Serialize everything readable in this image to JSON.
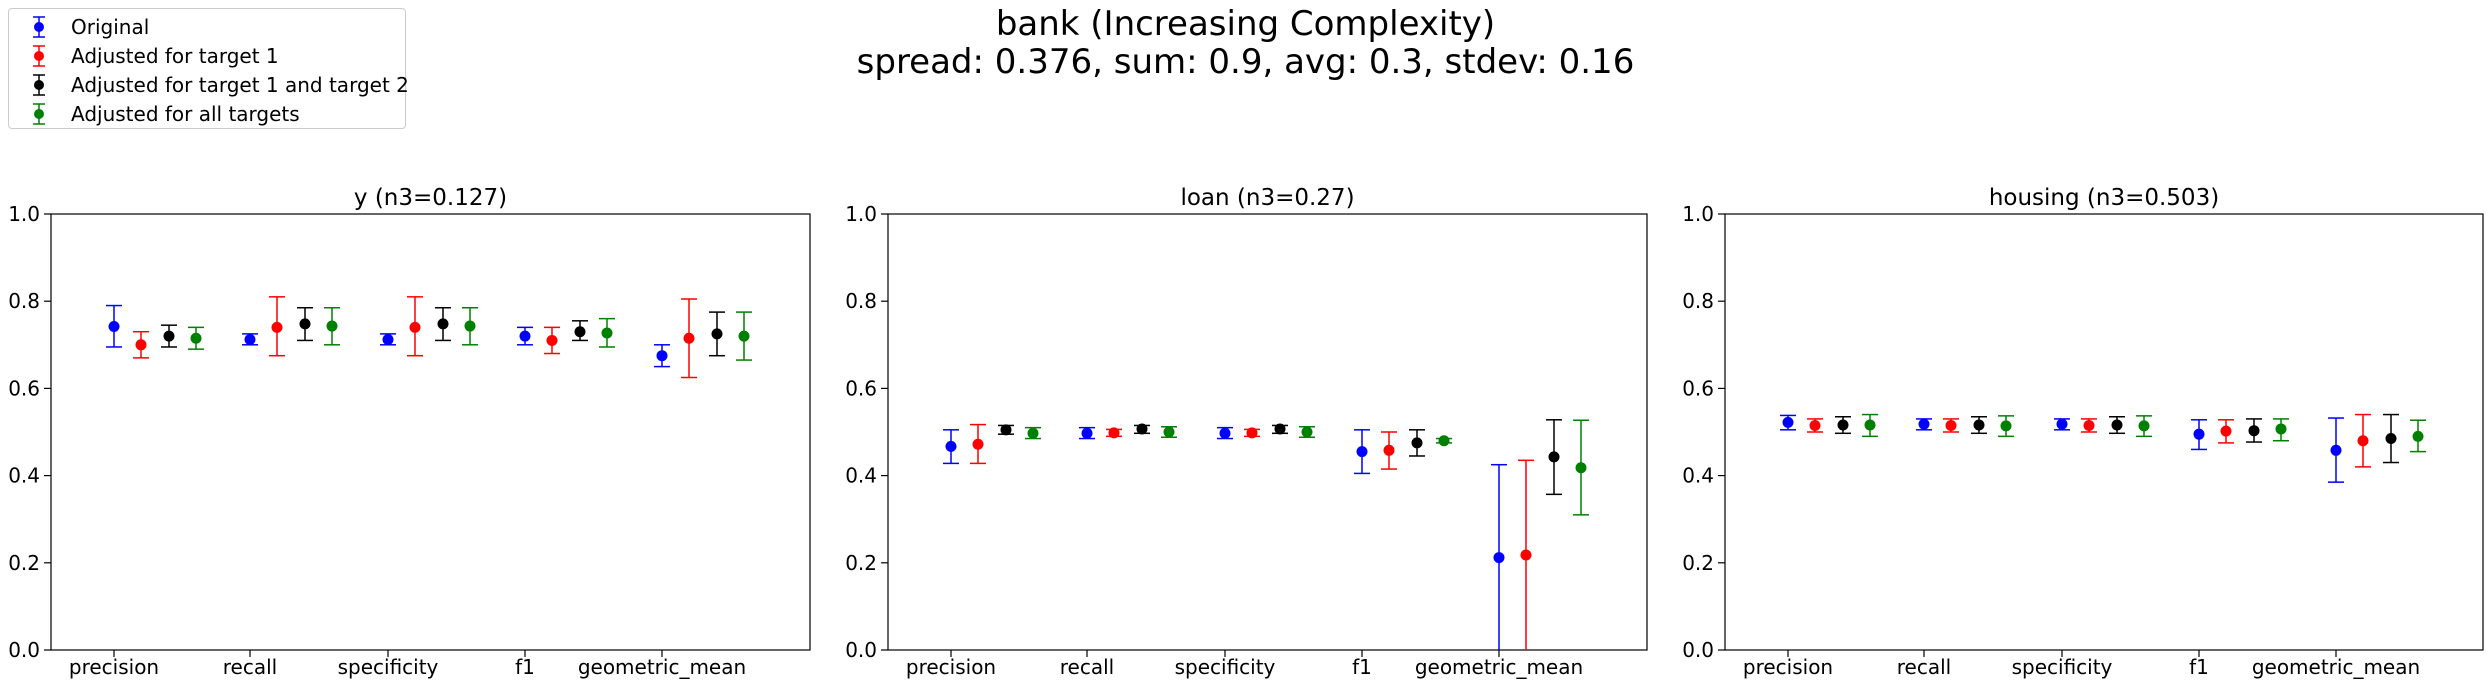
{
  "suptitle": {
    "line1": "bank (Increasing Complexity)",
    "line2": "spread: 0.376, sum: 0.9, avg: 0.3, stdev: 0.16"
  },
  "legend": {
    "items": [
      {
        "label": "Original",
        "color": "#0000ff"
      },
      {
        "label": "Adjusted for target 1",
        "color": "#ff0000"
      },
      {
        "label": "Adjusted for target 1 and target 2",
        "color": "#000000"
      },
      {
        "label": "Adjusted for all targets",
        "color": "#008000"
      }
    ]
  },
  "chart_data": [
    {
      "type": "scatter",
      "error_bars": true,
      "title": "y (n3=0.127)",
      "categories": [
        "precision",
        "recall",
        "specificity",
        "f1",
        "geometric_mean"
      ],
      "ylim": [
        0,
        1
      ],
      "yticks": [
        "0.0",
        "0.2",
        "0.4",
        "0.6",
        "0.8",
        "1.0"
      ],
      "grid": false,
      "series": [
        {
          "name": "Original",
          "color": "#0000ff",
          "values": [
            0.742,
            0.712,
            0.712,
            0.72,
            0.675
          ],
          "lower": [
            0.695,
            0.7,
            0.7,
            0.7,
            0.65
          ],
          "upper": [
            0.79,
            0.725,
            0.725,
            0.74,
            0.7
          ]
        },
        {
          "name": "Adjusted for target 1",
          "color": "#ff0000",
          "values": [
            0.7,
            0.74,
            0.74,
            0.71,
            0.715
          ],
          "lower": [
            0.67,
            0.675,
            0.675,
            0.68,
            0.625
          ],
          "upper": [
            0.73,
            0.81,
            0.81,
            0.74,
            0.805
          ]
        },
        {
          "name": "Adjusted for target 1 and target 2",
          "color": "#000000",
          "values": [
            0.72,
            0.748,
            0.748,
            0.73,
            0.725
          ],
          "lower": [
            0.695,
            0.71,
            0.71,
            0.71,
            0.675
          ],
          "upper": [
            0.745,
            0.785,
            0.785,
            0.755,
            0.775
          ]
        },
        {
          "name": "Adjusted for all targets",
          "color": "#008000",
          "values": [
            0.715,
            0.743,
            0.743,
            0.727,
            0.72
          ],
          "lower": [
            0.69,
            0.7,
            0.7,
            0.695,
            0.665
          ],
          "upper": [
            0.74,
            0.785,
            0.785,
            0.76,
            0.775
          ]
        }
      ]
    },
    {
      "type": "scatter",
      "error_bars": true,
      "title": "loan (n3=0.27)",
      "categories": [
        "precision",
        "recall",
        "specificity",
        "f1",
        "geometric_mean"
      ],
      "ylim": [
        0,
        1
      ],
      "yticks": [
        "0.0",
        "0.2",
        "0.4",
        "0.6",
        "0.8",
        "1.0"
      ],
      "grid": false,
      "series": [
        {
          "name": "Original",
          "color": "#0000ff",
          "values": [
            0.467,
            0.497,
            0.497,
            0.455,
            0.212
          ],
          "lower": [
            0.428,
            0.485,
            0.485,
            0.405,
            0.0
          ],
          "upper": [
            0.505,
            0.51,
            0.51,
            0.505,
            0.425
          ]
        },
        {
          "name": "Adjusted for target 1",
          "color": "#ff0000",
          "values": [
            0.472,
            0.498,
            0.498,
            0.458,
            0.218
          ],
          "lower": [
            0.428,
            0.49,
            0.49,
            0.415,
            0.0
          ],
          "upper": [
            0.517,
            0.506,
            0.506,
            0.5,
            0.435
          ]
        },
        {
          "name": "Adjusted for target 1 and target 2",
          "color": "#000000",
          "values": [
            0.505,
            0.507,
            0.507,
            0.475,
            0.443
          ],
          "lower": [
            0.495,
            0.497,
            0.497,
            0.445,
            0.357
          ],
          "upper": [
            0.515,
            0.515,
            0.515,
            0.505,
            0.528
          ]
        },
        {
          "name": "Adjusted for all targets",
          "color": "#008000",
          "values": [
            0.497,
            0.5,
            0.5,
            0.48,
            0.418
          ],
          "lower": [
            0.485,
            0.488,
            0.488,
            0.475,
            0.31
          ],
          "upper": [
            0.51,
            0.512,
            0.512,
            0.485,
            0.527
          ]
        }
      ]
    },
    {
      "type": "scatter",
      "error_bars": true,
      "title": "housing (n3=0.503)",
      "categories": [
        "precision",
        "recall",
        "specificity",
        "f1",
        "geometric_mean"
      ],
      "ylim": [
        0,
        1
      ],
      "yticks": [
        "0.0",
        "0.2",
        "0.4",
        "0.6",
        "0.8",
        "1.0"
      ],
      "grid": false,
      "series": [
        {
          "name": "Original",
          "color": "#0000ff",
          "values": [
            0.522,
            0.518,
            0.518,
            0.495,
            0.458
          ],
          "lower": [
            0.505,
            0.505,
            0.505,
            0.46,
            0.385
          ],
          "upper": [
            0.538,
            0.53,
            0.53,
            0.528,
            0.532
          ]
        },
        {
          "name": "Adjusted for target 1",
          "color": "#ff0000",
          "values": [
            0.515,
            0.515,
            0.515,
            0.502,
            0.48
          ],
          "lower": [
            0.5,
            0.5,
            0.5,
            0.475,
            0.42
          ],
          "upper": [
            0.53,
            0.53,
            0.53,
            0.528,
            0.54
          ]
        },
        {
          "name": "Adjusted for target 1 and target 2",
          "color": "#000000",
          "values": [
            0.516,
            0.516,
            0.516,
            0.503,
            0.485
          ],
          "lower": [
            0.497,
            0.497,
            0.497,
            0.477,
            0.43
          ],
          "upper": [
            0.535,
            0.535,
            0.535,
            0.53,
            0.54
          ]
        },
        {
          "name": "Adjusted for all targets",
          "color": "#008000",
          "values": [
            0.516,
            0.514,
            0.514,
            0.507,
            0.49
          ],
          "lower": [
            0.49,
            0.49,
            0.49,
            0.48,
            0.455
          ],
          "upper": [
            0.54,
            0.537,
            0.537,
            0.53,
            0.527
          ]
        }
      ]
    }
  ]
}
